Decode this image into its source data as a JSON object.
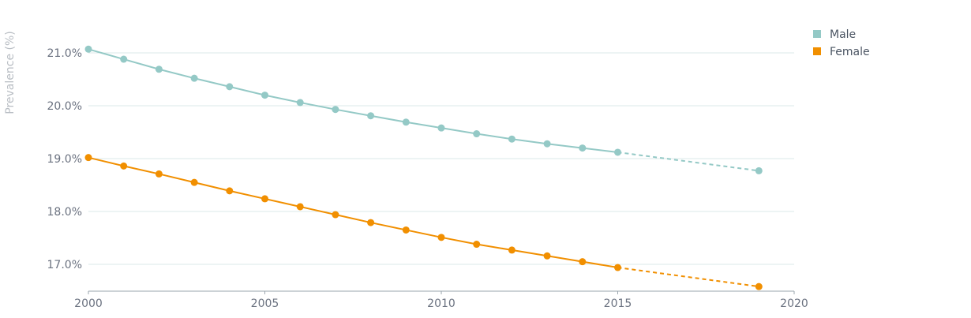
{
  "chart_data": {
    "type": "line",
    "title": "",
    "xlabel": "",
    "ylabel": "Prevalence (%)",
    "xlim": [
      2000,
      2020
    ],
    "ylim": [
      16.5,
      21.4
    ],
    "x_ticks": [
      2000,
      2005,
      2010,
      2015,
      2020
    ],
    "x_tick_labels": [
      "2000",
      "2005",
      "2010",
      "2015",
      "2020"
    ],
    "y_ticks": [
      17,
      18,
      19,
      20,
      21
    ],
    "y_tick_labels": [
      "17.0%",
      "18.0%",
      "19.0%",
      "20.0%",
      "21.0%"
    ],
    "grid": "horizontal",
    "legend_position": "top-right",
    "solid_until": 2015,
    "series": [
      {
        "name": "Male",
        "color": "#94c9c6",
        "x": [
          2000,
          2001,
          2002,
          2003,
          2004,
          2005,
          2006,
          2007,
          2008,
          2009,
          2010,
          2011,
          2012,
          2013,
          2014,
          2015,
          2019
        ],
        "values": [
          21.07,
          20.88,
          20.69,
          20.52,
          20.36,
          20.2,
          20.06,
          19.93,
          19.81,
          19.69,
          19.58,
          19.47,
          19.37,
          19.28,
          19.2,
          19.12,
          18.77
        ]
      },
      {
        "name": "Female",
        "color": "#f18f00",
        "x": [
          2000,
          2001,
          2002,
          2003,
          2004,
          2005,
          2006,
          2007,
          2008,
          2009,
          2010,
          2011,
          2012,
          2013,
          2014,
          2015,
          2019
        ],
        "values": [
          19.02,
          18.86,
          18.71,
          18.55,
          18.39,
          18.24,
          18.09,
          17.94,
          17.79,
          17.65,
          17.51,
          17.38,
          17.27,
          17.16,
          17.05,
          16.94,
          16.58
        ]
      }
    ]
  }
}
